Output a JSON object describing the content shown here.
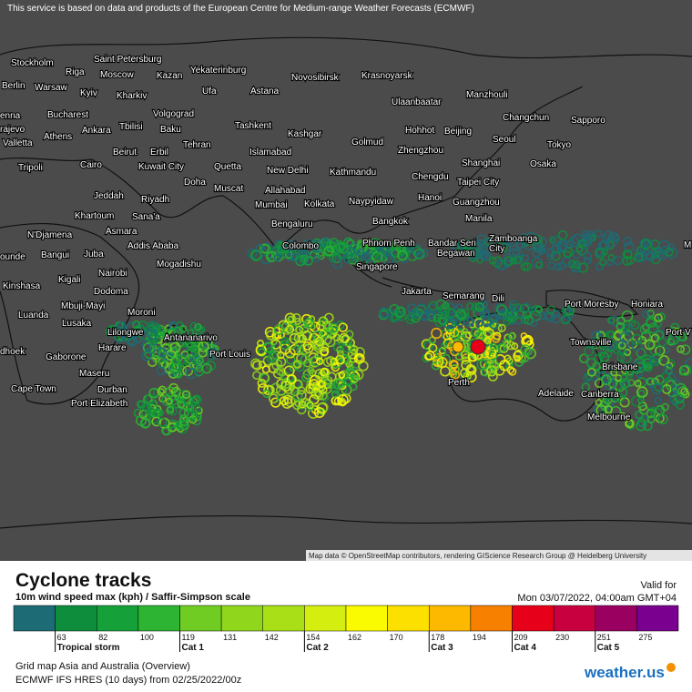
{
  "header": {
    "notice": "This service is based on data and products of the European Centre for Medium-range Weather Forecasts (ECMWF)"
  },
  "map": {
    "attribution": "Map data © OpenStreetMap contributors, rendering GIScience Research Group @ Heidelberg University",
    "cities": [
      "Stockholm",
      "Riga",
      "Saint Petersburg",
      "Moscow",
      "Kazan",
      "Yekaterinburg",
      "Novosibirsk",
      "Krasnoyarsk",
      "Berlin",
      "Warsaw",
      "Kyiv",
      "Kharkiv",
      "Ufa",
      "Astana",
      "Ulaanbaatar",
      "Manzhouli",
      "enna",
      "Bucharest",
      "Volgograd",
      "Changchun",
      "Sapporo",
      "rajevo",
      "Tbilisi",
      "Baku",
      "Tashkent",
      "Kashgar",
      "Hohhot",
      "Beijing",
      "Valletta",
      "Athens",
      "Ankara",
      "Tehran",
      "Islamabad",
      "Golmud",
      "Zhengzhou",
      "Seoul",
      "Tokyo",
      "Beirut",
      "Erbil",
      "Kathmandu",
      "Tripoli",
      "Cairo",
      "Kuwait City",
      "Quetta",
      "New Delhi",
      "Chengdu",
      "Shanghai",
      "Osaka",
      "Doha",
      "Muscat",
      "Allahabad",
      "Taipei City",
      "Jeddah",
      "Riyadh",
      "Mumbai",
      "Kolkata",
      "Naypyidaw",
      "Hanoi",
      "Guangzhou",
      "Khartoum",
      "Sana'a",
      "Bengaluru",
      "Bangkok",
      "Manila",
      "Asmara",
      "Addis Ababa",
      "Zamboanga",
      "City",
      "N'Djamena",
      "Colombo",
      "Phnom Penh",
      "Bandar Seri",
      "Begawan",
      "ounde",
      "Bangui",
      "Juba",
      "Mogadishu",
      "Singapore",
      "M",
      "Kigali",
      "Nairobi",
      "Kinshasa",
      "Dodoma",
      "Jakarta",
      "Semarang",
      "Dili",
      "Port Moresby",
      "Honiara",
      "Mbuji-Mayi",
      "Luanda",
      "Moroni",
      "Lusaka",
      "Lilongwe",
      "Port V",
      "Antananarivo",
      "Townsville",
      "Harare",
      "dhoek",
      "Port Louis",
      "Gaborone",
      "Brisbane",
      "Maseru",
      "Perth",
      "Cape Town",
      "Durban",
      "Adelaide",
      "Canberra",
      "Port Elizabeth",
      "Melbourne"
    ]
  },
  "legend": {
    "title": "Cyclone tracks",
    "subtitle": "10m wind speed max (kph) / Saffir-Simpson scale",
    "valid_label": "Valid for",
    "valid_time": "Mon 03/07/2022, 04:00am GMT+04",
    "scale": [
      {
        "color": "#1d6b74"
      },
      {
        "color": "#0e8d3d",
        "value": 63,
        "category": "Tropical storm"
      },
      {
        "color": "#15a03a",
        "value": 82
      },
      {
        "color": "#2cb432",
        "value": 100
      },
      {
        "color": "#70cc22",
        "value": 119,
        "category": "Cat 1"
      },
      {
        "color": "#8fd61c",
        "value": 131
      },
      {
        "color": "#a8df16",
        "value": 142
      },
      {
        "color": "#d4ee10",
        "value": 154,
        "category": "Cat 2"
      },
      {
        "color": "#fafa00",
        "value": 162
      },
      {
        "color": "#fce000",
        "value": 170
      },
      {
        "color": "#fdb800",
        "value": 178,
        "category": "Cat 3"
      },
      {
        "color": "#f88000",
        "value": 194
      },
      {
        "color": "#e6001a",
        "value": 209,
        "category": "Cat 4"
      },
      {
        "color": "#c90040",
        "value": 230
      },
      {
        "color": "#9a0060",
        "value": 251,
        "category": "Cat 5"
      },
      {
        "color": "#7a0090",
        "value": 275
      }
    ]
  },
  "footer": {
    "line1": "Grid map Asia and Australia (Overview)",
    "line2": "ECMWF IFS HRES (10 days) from 02/25/2022/00z",
    "logo": "weather.us"
  }
}
